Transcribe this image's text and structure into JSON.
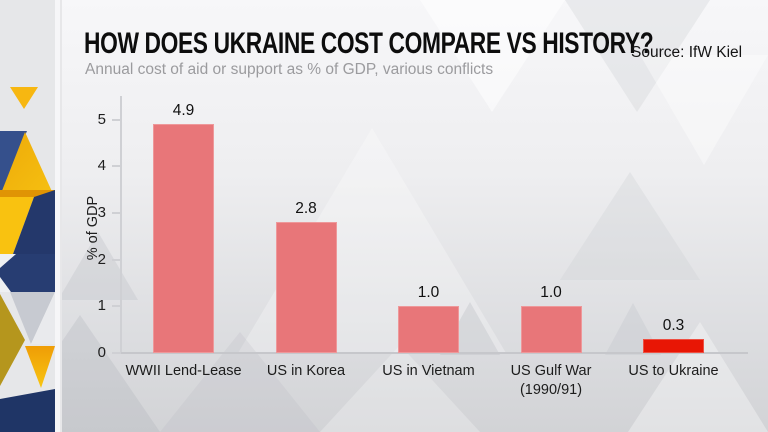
{
  "header": {
    "title": "HOW DOES UKRAINE COST COMPARE VS HISTORY?",
    "subtitle": "Annual cost of aid or support as % of GDP, various conflicts",
    "source": "Source: IfW Kiel"
  },
  "chart_data": {
    "type": "bar",
    "title": "HOW DOES UKRAINE COST COMPARE VS HISTORY?",
    "subtitle": "Annual cost of aid or support as % of GDP, various conflicts",
    "source": "Source: IfW Kiel",
    "xlabel": "",
    "ylabel": "% of GDP",
    "ylim": [
      0,
      5
    ],
    "yticks": [
      0,
      1,
      2,
      3,
      4,
      5
    ],
    "grid": false,
    "legend": "none",
    "categories": [
      "WWII Lend-Lease",
      "US in Korea",
      "US in Vietnam",
      "US Gulf War (1990/91)",
      "US to Ukraine"
    ],
    "values": [
      4.9,
      2.8,
      1.0,
      1.0,
      0.3
    ],
    "value_labels": [
      "4.9",
      "2.8",
      "1.0",
      "1.0",
      "0.3"
    ],
    "bar_color": "#e87679",
    "highlight_index": 4,
    "highlight_color": "#e81605"
  },
  "colors": {
    "bar_salmon": "#e87679",
    "highlight_red": "#e81605",
    "brand_navy": "#24386b",
    "brand_gold": "#f6b711",
    "axis_gray": "#cfd0d4",
    "subtitle_gray": "#9b9b9e"
  }
}
